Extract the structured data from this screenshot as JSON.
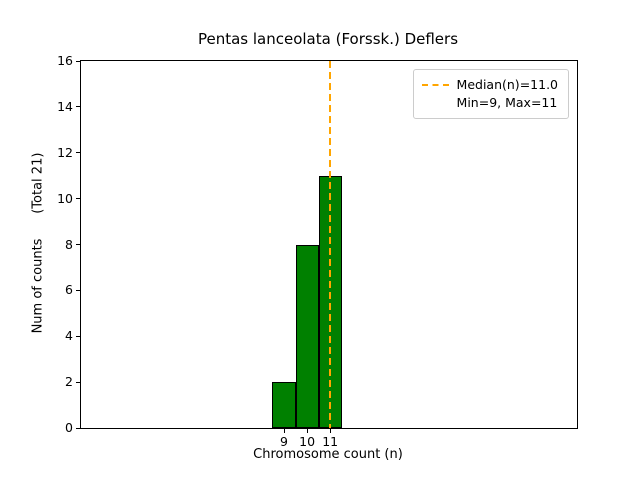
{
  "chart_data": {
    "type": "bar",
    "subtype": "histogram",
    "title": "Pentas lanceolata (Forssk.) Deflers",
    "xlabel": "Chromosome count (n)",
    "ylabel": "Num of counts      (Total 21)",
    "total_counts": 21,
    "categories": [
      9,
      10,
      11
    ],
    "values": [
      2,
      8,
      11
    ],
    "bar_width": 1,
    "bar_color": "#008000",
    "bar_edge_color": "#000000",
    "median_line": {
      "x": 11.0,
      "color": "#ffa500",
      "style": "dashed"
    },
    "stats": {
      "median": 11.0,
      "min": 9,
      "max": 11
    },
    "xlim": [
      0.2,
      21.7
    ],
    "ylim": [
      0,
      16
    ],
    "yticks": [
      0,
      2,
      4,
      6,
      8,
      10,
      12,
      14,
      16
    ],
    "xticks": [
      9,
      10,
      11
    ],
    "grid": false,
    "legend": {
      "position": "upper-right",
      "entries": [
        {
          "label": "Median(n)=11.0",
          "marker": "dashed-orange-line"
        },
        {
          "label": "Min=9, Max=11",
          "marker": "none"
        }
      ]
    }
  }
}
